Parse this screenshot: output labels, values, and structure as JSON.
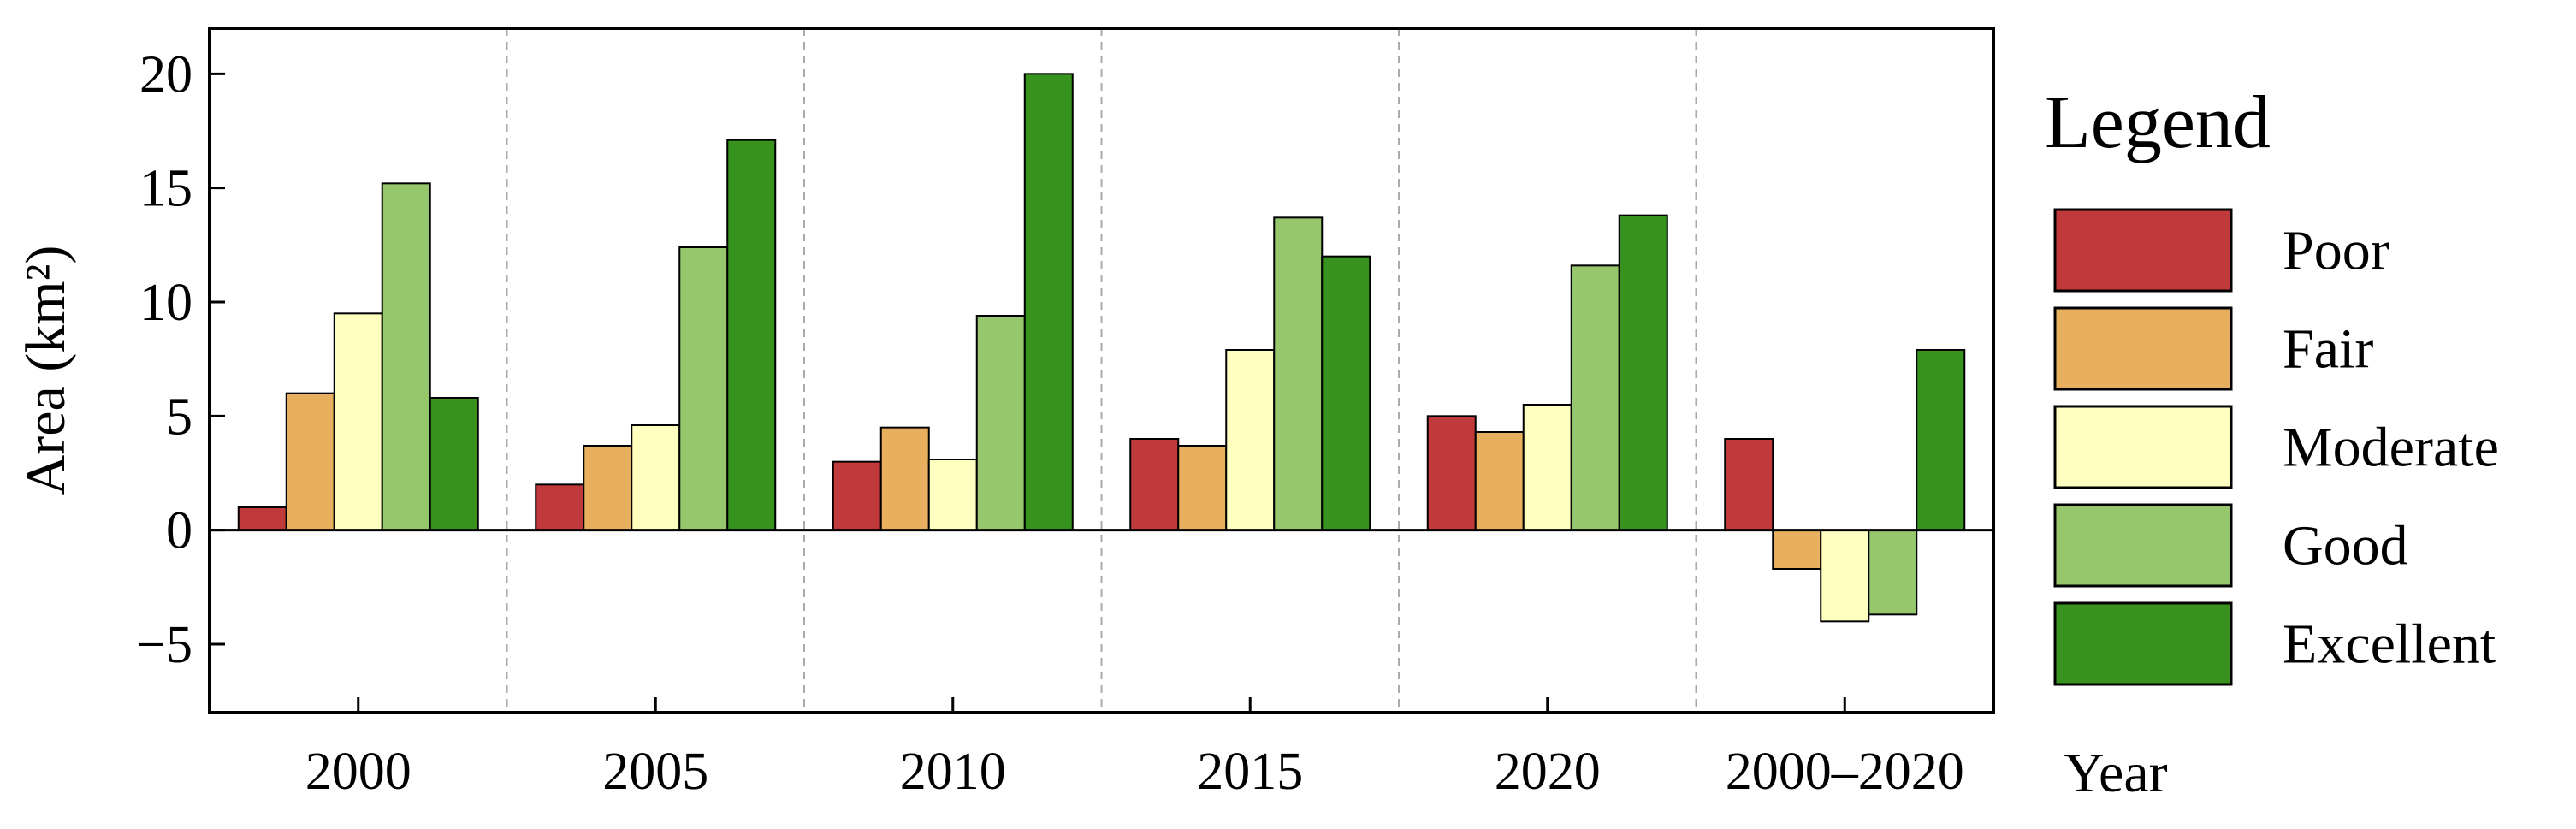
{
  "chart_data": {
    "type": "bar",
    "title": "",
    "categories": [
      "2000",
      "2005",
      "2010",
      "2015",
      "2020",
      "2000–2020"
    ],
    "series": [
      {
        "name": "Poor",
        "color": "#c0393b",
        "values": [
          1.0,
          2.0,
          3.0,
          4.0,
          5.0,
          4.0
        ]
      },
      {
        "name": "Fair",
        "color": "#e8b05e",
        "values": [
          6.0,
          3.7,
          4.5,
          3.7,
          4.3,
          -1.7
        ]
      },
      {
        "name": "Moderate",
        "color": "#ffffc0",
        "values": [
          9.5,
          4.6,
          3.1,
          7.9,
          5.5,
          -4.0
        ]
      },
      {
        "name": "Good",
        "color": "#97c76c",
        "values": [
          15.2,
          12.4,
          9.4,
          13.7,
          11.6,
          -3.7
        ]
      },
      {
        "name": "Excellent",
        "color": "#37921e",
        "values": [
          5.8,
          17.1,
          20.0,
          12.0,
          13.8,
          7.9
        ]
      }
    ],
    "xlabel": "Year",
    "ylabel": "Area (km²)",
    "ylim": [
      -8,
      22
    ],
    "yticks": [
      -5,
      0,
      5,
      10,
      15,
      20
    ],
    "ytick_labels": [
      "−5",
      "0",
      "5",
      "10",
      "15",
      "20"
    ],
    "grid": "vertical dashed separators between groups",
    "legend": {
      "title": "Legend",
      "position": "right"
    }
  }
}
